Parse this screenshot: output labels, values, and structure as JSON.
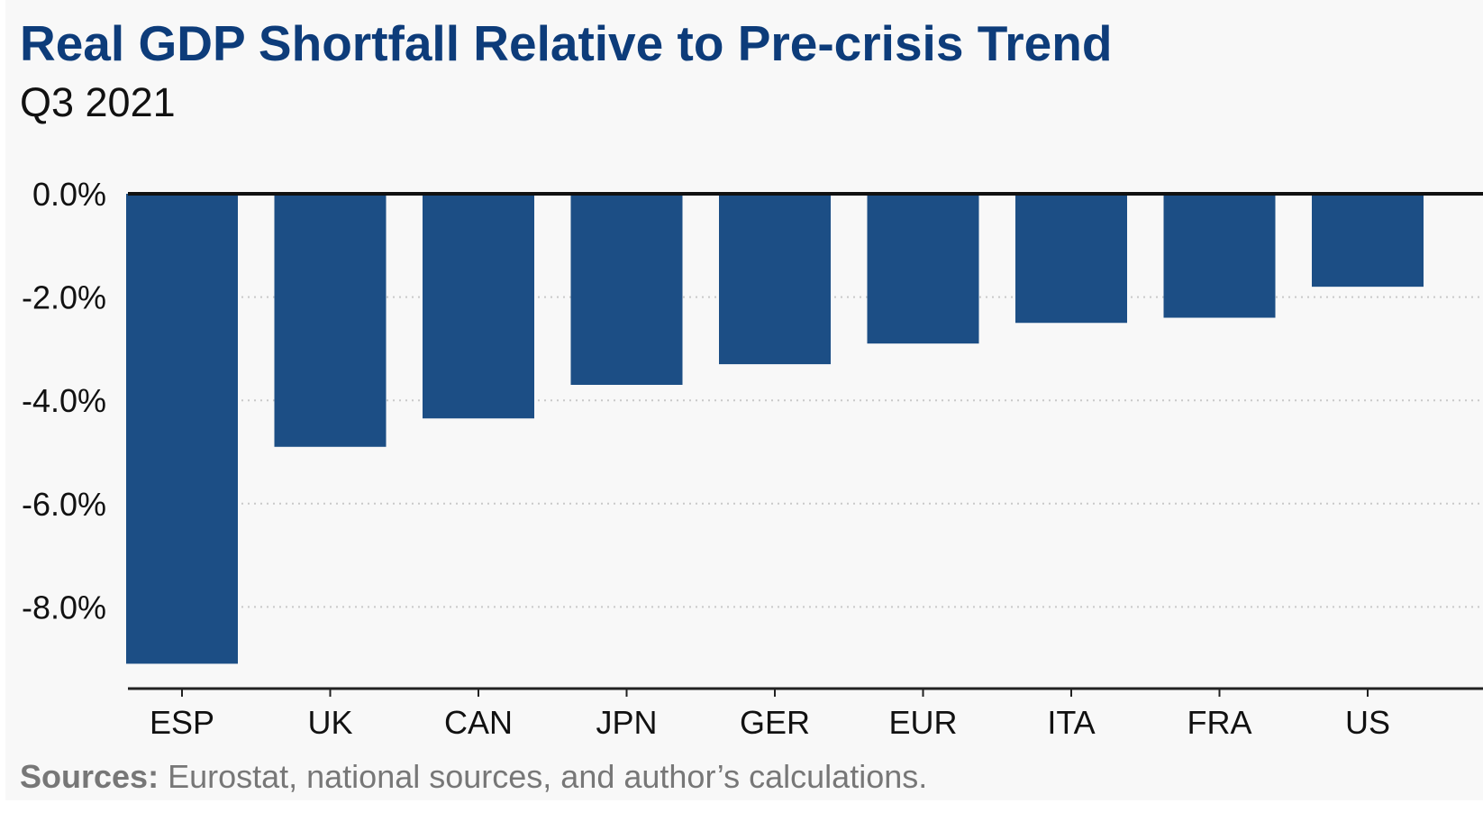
{
  "chart_data": {
    "type": "bar",
    "title": "Real GDP Shortfall Relative to Pre-crisis Trend",
    "subtitle": "Q3 2021",
    "categories": [
      "ESP",
      "UK",
      "CAN",
      "JPN",
      "GER",
      "EUR",
      "ITA",
      "FRA",
      "US"
    ],
    "values": [
      -9.1,
      -4.9,
      -4.35,
      -3.7,
      -3.3,
      -2.9,
      -2.5,
      -2.4,
      -1.8
    ],
    "y_ticks": [
      0,
      -2,
      -4,
      -6,
      -8
    ],
    "y_tick_labels": [
      "0.0%",
      "-2.0%",
      "-4.0%",
      "-6.0%",
      "-8.0%"
    ],
    "ylim": [
      -9.6,
      0
    ],
    "grid": "dotted horizontal",
    "bar_color": "#1c4e85",
    "xlabel": "",
    "ylabel": ""
  },
  "source": {
    "label": "Sources:",
    "text": " Eurostat, national sources, and author’s calculations."
  },
  "colors": {
    "title": "#0d3c7a",
    "background": "#f8f8f8",
    "bar": "#1c4e85"
  }
}
